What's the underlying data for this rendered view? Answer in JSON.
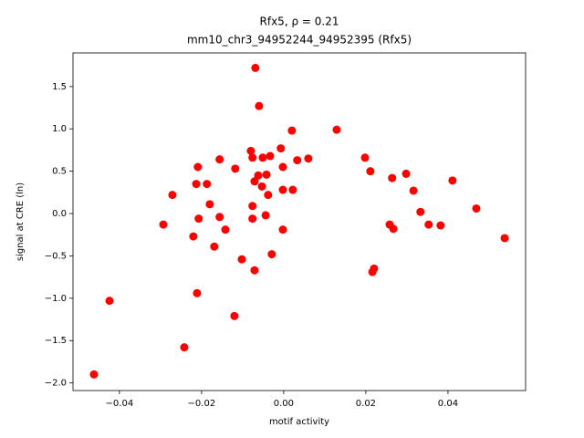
{
  "chart_data": {
    "type": "scatter",
    "title": "Rfx5, ρ = 0.21",
    "subtitle": "mm10_chr3_94952244_94952395 (Rfx5)",
    "x_label": "motif activity",
    "y_label": "signal at CRE (ln)",
    "color": "#ff0000",
    "x": [
      -0.0462,
      -0.0424,
      -0.0293,
      -0.0271,
      -0.0242,
      -0.022,
      -0.0213,
      -0.0209,
      -0.0211,
      -0.0207,
      -0.0187,
      -0.018,
      -0.0169,
      -0.0156,
      -0.0156,
      -0.0142,
      -0.012,
      -0.0118,
      -0.0102,
      -0.008,
      -0.0076,
      -0.0076,
      -0.0076,
      -0.0071,
      -0.0071,
      -0.0069,
      -0.0062,
      -0.006,
      -0.0053,
      -0.0051,
      -0.0044,
      -0.0042,
      -0.0038,
      -0.0033,
      -0.0029,
      -0.0007,
      -0.0002,
      -0.0002,
      -0.0002,
      0.002,
      0.0022,
      0.0033,
      0.006,
      0.0129,
      0.0198,
      0.0211,
      0.0216,
      0.022,
      0.0258,
      0.0264,
      0.0267,
      0.0298,
      0.0316,
      0.0333,
      0.0353,
      0.0382,
      0.0411,
      0.0469,
      0.0538
    ],
    "values": [
      -1.9,
      -1.03,
      -0.13,
      0.22,
      -1.58,
      -0.27,
      0.35,
      0.55,
      -0.94,
      -0.06,
      0.35,
      0.11,
      -0.39,
      0.64,
      -0.04,
      -0.19,
      -1.21,
      0.53,
      -0.54,
      0.74,
      0.66,
      0.09,
      -0.06,
      0.38,
      -0.67,
      1.72,
      0.45,
      1.27,
      0.32,
      0.66,
      -0.02,
      0.46,
      0.22,
      0.68,
      -0.48,
      0.77,
      0.55,
      0.28,
      -0.19,
      0.98,
      0.28,
      0.63,
      0.65,
      0.99,
      0.66,
      0.5,
      -0.69,
      -0.65,
      -0.13,
      0.42,
      -0.18,
      0.47,
      0.27,
      0.02,
      -0.13,
      -0.14,
      0.39,
      0.06,
      -0.29
    ],
    "xlim": [
      -0.0513,
      0.0589
    ],
    "ylim": [
      -2.09,
      1.897
    ],
    "xticks": [
      {
        "value": -0.04,
        "label": "−0.04"
      },
      {
        "value": -0.02,
        "label": "−0.02"
      },
      {
        "value": 0,
        "label": "0.00"
      },
      {
        "value": 0.02,
        "label": "0.02"
      },
      {
        "value": 0.04,
        "label": "0.04"
      }
    ],
    "yticks": [
      {
        "value": -2,
        "label": "−2.0"
      },
      {
        "value": -1.5,
        "label": "−1.5"
      },
      {
        "value": -1,
        "label": "−1.0"
      },
      {
        "value": -0.5,
        "label": "−0.5"
      },
      {
        "value": 0,
        "label": "0.0"
      },
      {
        "value": 0.5,
        "label": "0.5"
      },
      {
        "value": 1,
        "label": "1.0"
      },
      {
        "value": 1.5,
        "label": "1.5"
      }
    ]
  }
}
